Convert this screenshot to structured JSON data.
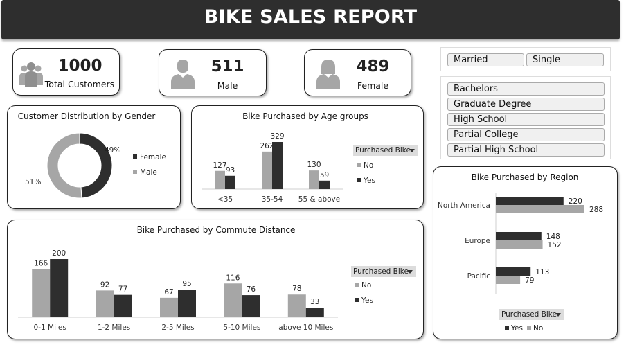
{
  "header": {
    "title": "BIKE SALES REPORT"
  },
  "kpis": [
    {
      "value": "1000",
      "label": "Total Customers",
      "icon": "group-icon"
    },
    {
      "value": "511",
      "label": "Male",
      "icon": "male-icon"
    },
    {
      "value": "489",
      "label": "Female",
      "icon": "female-icon"
    }
  ],
  "slicers": {
    "marital": [
      "Married",
      "Single"
    ],
    "education": [
      "Bachelors",
      "Graduate Degree",
      "High School",
      "Partial College",
      "Partial High School"
    ]
  },
  "colors": {
    "yes": "#2e2e2e",
    "no": "#a6a6a6",
    "female": "#2e2e2e",
    "male": "#a6a6a6"
  },
  "filter": {
    "label": "Purchased Bike"
  },
  "chart_data": [
    {
      "type": "pie",
      "variant": "donut",
      "title": "Customer Distribution by Gender",
      "slices": [
        {
          "name": "Female",
          "value": 49,
          "label": "49%"
        },
        {
          "name": "Male",
          "value": 51,
          "label": "51%"
        }
      ],
      "legend": "right"
    },
    {
      "type": "bar",
      "title": "Bike Purchased by Age groups",
      "categories": [
        "<35",
        "35-54",
        "55 & above"
      ],
      "series": [
        {
          "name": "No",
          "values": [
            127,
            262,
            130
          ]
        },
        {
          "name": "Yes",
          "values": [
            93,
            329,
            59
          ]
        }
      ],
      "ylim": [
        0,
        350
      ],
      "legend": "right"
    },
    {
      "type": "bar",
      "title": "Bike Purchased by Commute Distance",
      "categories": [
        "0-1 Miles",
        "1-2 Miles",
        "2-5 Miles",
        "5-10 Miles",
        "above 10 Miles"
      ],
      "series": [
        {
          "name": "No",
          "values": [
            166,
            92,
            67,
            116,
            78
          ]
        },
        {
          "name": "Yes",
          "values": [
            200,
            77,
            95,
            76,
            33
          ]
        }
      ],
      "ylim": [
        0,
        220
      ],
      "legend": "right"
    },
    {
      "type": "bar",
      "orientation": "horizontal",
      "title": "Bike Purchased by Region",
      "categories": [
        "North America",
        "Europe",
        "Pacific"
      ],
      "series": [
        {
          "name": "Yes",
          "values": [
            220,
            148,
            113
          ]
        },
        {
          "name": "No",
          "values": [
            288,
            152,
            79
          ]
        }
      ],
      "xlim": [
        0,
        300
      ],
      "legend": "bottom"
    }
  ]
}
